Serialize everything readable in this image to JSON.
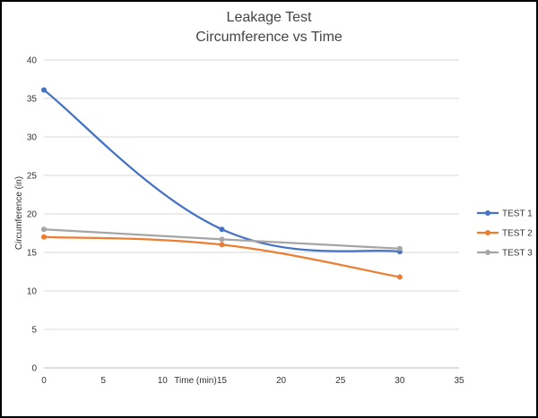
{
  "chart_data": {
    "type": "line",
    "title": "Leakage Test",
    "subtitle": "Circumference vs Time",
    "xlabel": "Time (min)",
    "ylabel": "Circumference (in)",
    "xlim": [
      0,
      35
    ],
    "ylim": [
      0,
      40
    ],
    "xticks": [
      0,
      5,
      10,
      15,
      20,
      25,
      30,
      35
    ],
    "yticks": [
      0,
      5,
      10,
      15,
      20,
      25,
      30,
      35,
      40
    ],
    "grid": true,
    "smooth": true,
    "legend_position": "right",
    "series": [
      {
        "name": "TEST 1",
        "color": "#4472c4",
        "marker": "circle",
        "x": [
          0,
          15,
          30
        ],
        "y": [
          36.1,
          18.0,
          15.1
        ]
      },
      {
        "name": "TEST 2",
        "color": "#ed7d31",
        "marker": "circle",
        "x": [
          0,
          15,
          30
        ],
        "y": [
          17.0,
          16.0,
          11.8
        ]
      },
      {
        "name": "TEST 3",
        "color": "#a5a5a5",
        "marker": "circle",
        "x": [
          0,
          15,
          30
        ],
        "y": [
          18.0,
          16.7,
          15.5
        ]
      }
    ]
  }
}
